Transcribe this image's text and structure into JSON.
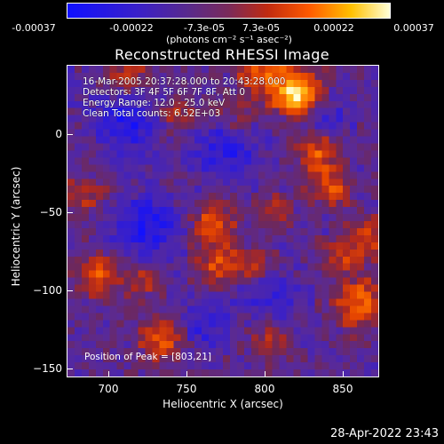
{
  "colorbar": {
    "ticks": [
      "-0.00037",
      "-0.00022",
      "-7.3e-05",
      "7.3e-05",
      "0.00022",
      "0.00037"
    ],
    "units": "(photons cm⁻² s⁻¹ asec⁻²)",
    "colors": [
      "#1010ff",
      "#5a2a8a",
      "#c02a10",
      "#ff5a00",
      "#ffc000",
      "#ffffd8"
    ]
  },
  "title": "Reconstructed RHESSI Image",
  "info": {
    "time_range": "16-Mar-2005 20:37:28.000 to 20:43:28.000",
    "detectors": "Detectors: 3F 4F 5F 6F 7F 8F, Att 0",
    "energy": "Energy Range: 12.0 - 25.0 keV",
    "clean": "Clean     Total counts: 6.52E+03",
    "peak": "Position of Peak = [803,21]"
  },
  "axes": {
    "xlabel": "Heliocentric X (arcsec)",
    "ylabel": "Heliocentric Y (arcsec)",
    "xticks": [
      "700",
      "750",
      "800",
      "850"
    ],
    "yticks": [
      "0",
      "−50",
      "−100",
      "−150"
    ]
  },
  "timestamp": "28-Apr-2022 23:43"
}
